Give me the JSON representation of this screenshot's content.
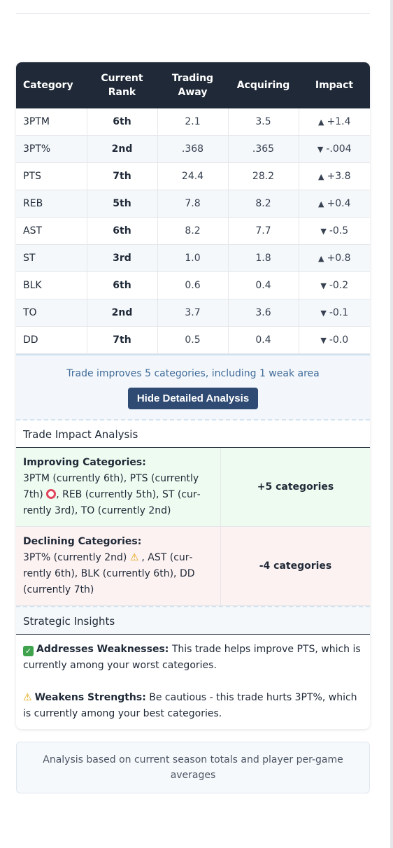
{
  "table": {
    "headers": [
      "Category",
      "Current Rank",
      "Trading Away",
      "Acquiring",
      "Impact"
    ],
    "rows": [
      {
        "category": "3PTM",
        "rank": "6th",
        "away": "2.1",
        "acquiring": "3.5",
        "impact": "+1.4",
        "direction": "up"
      },
      {
        "category": "3PT%",
        "rank": "2nd",
        "away": ".368",
        "acquiring": ".365",
        "impact": "-.004",
        "direction": "down"
      },
      {
        "category": "PTS",
        "rank": "7th",
        "away": "24.4",
        "acquiring": "28.2",
        "impact": "+3.8",
        "direction": "up"
      },
      {
        "category": "REB",
        "rank": "5th",
        "away": "7.8",
        "acquiring": "8.2",
        "impact": "+0.4",
        "direction": "up"
      },
      {
        "category": "AST",
        "rank": "6th",
        "away": "8.2",
        "acquiring": "7.7",
        "impact": "-0.5",
        "direction": "down"
      },
      {
        "category": "ST",
        "rank": "3rd",
        "away": "1.0",
        "acquiring": "1.8",
        "impact": "+0.8",
        "direction": "up"
      },
      {
        "category": "BLK",
        "rank": "6th",
        "away": "0.6",
        "acquiring": "0.4",
        "impact": "-0.2",
        "direction": "down"
      },
      {
        "category": "TO",
        "rank": "2nd",
        "away": "3.7",
        "acquiring": "3.6",
        "impact": "-0.1",
        "direction": "down-green"
      },
      {
        "category": "DD",
        "rank": "7th",
        "away": "0.5",
        "acquiring": "0.4",
        "impact": "-0.0",
        "direction": "down"
      }
    ]
  },
  "summary": {
    "text": "Trade improves 5 categories, including 1 weak area",
    "button_label": "Hide Detailed Analysis"
  },
  "impact_analysis": {
    "title": "Trade Impact Analysis",
    "improving": {
      "heading": "Improving Categories:",
      "text_before": "3PTM (currently 6th), PTS (currently 7th)",
      "text_after": ", REB (currently 5th), ST (cur­rently 3rd), TO (currently 2nd)",
      "count": "+5 categories"
    },
    "declining": {
      "heading": "Declining Categories:",
      "text_before": "3PT% (currently 2nd)",
      "text_after": ", AST (cur­rently 6th), BLK (currently 6th), DD (currently 7th)",
      "count": "-4 categories"
    }
  },
  "insights": {
    "title": "Strategic Insights",
    "items": [
      {
        "icon": "check-icon",
        "label": "Addresses Weaknesses:",
        "text": " This trade helps improve PTS, which is currently among your worst categories."
      },
      {
        "icon": "warning-icon",
        "label": "Weakens Strengths:",
        "text": " Be cautious - this trade hurts 3PT%, which is currently among your best categories."
      }
    ]
  },
  "footer": {
    "text": "Analysis based on current season totals and player per-game averages"
  },
  "colors": {
    "header_bg": "#1f2937",
    "positive": "#3a7a4f",
    "negative": "#b0343c",
    "button_bg": "#2f4a73"
  }
}
